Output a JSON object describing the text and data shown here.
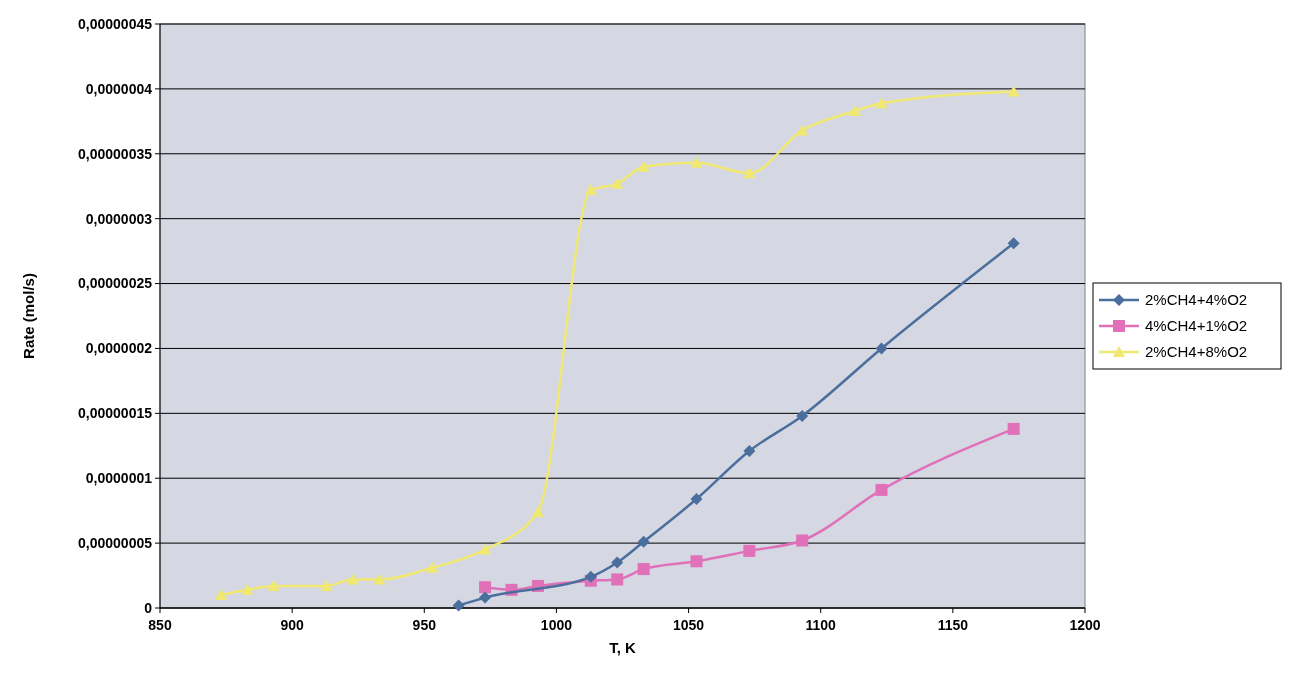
{
  "chart_data": {
    "type": "line",
    "xlabel": "T, K",
    "ylabel": "Rate (mol/s)",
    "xlim": [
      850,
      1200
    ],
    "xticks": [
      850,
      900,
      950,
      1000,
      1050,
      1100,
      1150,
      1200
    ],
    "ylim": [
      0,
      4.5e-07
    ],
    "yticks": [
      0,
      {
        "value": 5e-08,
        "label": "0,00000005"
      },
      {
        "value": 1e-07,
        "label": "0,0000001"
      },
      {
        "value": 1.5e-07,
        "label": "0,00000015"
      },
      {
        "value": 2e-07,
        "label": "0,0000002"
      },
      {
        "value": 2.5e-07,
        "label": "0,00000025"
      },
      {
        "value": 3e-07,
        "label": "0,0000003"
      },
      {
        "value": 3.5e-07,
        "label": "0,00000035"
      },
      {
        "value": 4e-07,
        "label": "0,0000004"
      },
      {
        "value": 4.5e-07,
        "label": "0,00000045"
      }
    ],
    "grid": "y",
    "legend": "right",
    "series": [
      {
        "name": "2%CH4+4%O2",
        "color": "#4a6f9c",
        "marker": "diamond",
        "x": [
          963,
          973,
          1013,
          1023,
          1033,
          1053,
          1073,
          1093,
          1123,
          1173
        ],
        "values": [
          2e-09,
          8e-09,
          2.4e-08,
          3.5e-08,
          5.1e-08,
          8.4e-08,
          1.21e-07,
          1.48e-07,
          2e-07,
          2.81e-07
        ]
      },
      {
        "name": "4%CH4+1%O2",
        "color": "#e070b8",
        "marker": "square",
        "x": [
          973,
          983,
          993,
          1013,
          1023,
          1033,
          1053,
          1073,
          1093,
          1123,
          1173
        ],
        "values": [
          1.6e-08,
          1.4e-08,
          1.7e-08,
          2.1e-08,
          2.2e-08,
          3e-08,
          3.6e-08,
          4.4e-08,
          5.2e-08,
          9.1e-08,
          1.38e-07
        ]
      },
      {
        "name": "2%CH4+8%O2",
        "color": "#f0e870",
        "marker": "triangle",
        "x": [
          873,
          883,
          893,
          913,
          923,
          933,
          953,
          973,
          993,
          1013,
          1023,
          1033,
          1053,
          1073,
          1093,
          1113,
          1123,
          1173
        ],
        "values": [
          1e-08,
          1.4e-08,
          1.7e-08,
          1.7e-08,
          2.2e-08,
          2.2e-08,
          3.1e-08,
          4.5e-08,
          7.4e-08,
          3.22e-07,
          3.27e-07,
          3.4e-07,
          3.43e-07,
          3.35e-07,
          3.68e-07,
          3.83e-07,
          3.89e-07,
          3.98e-07
        ]
      }
    ]
  }
}
